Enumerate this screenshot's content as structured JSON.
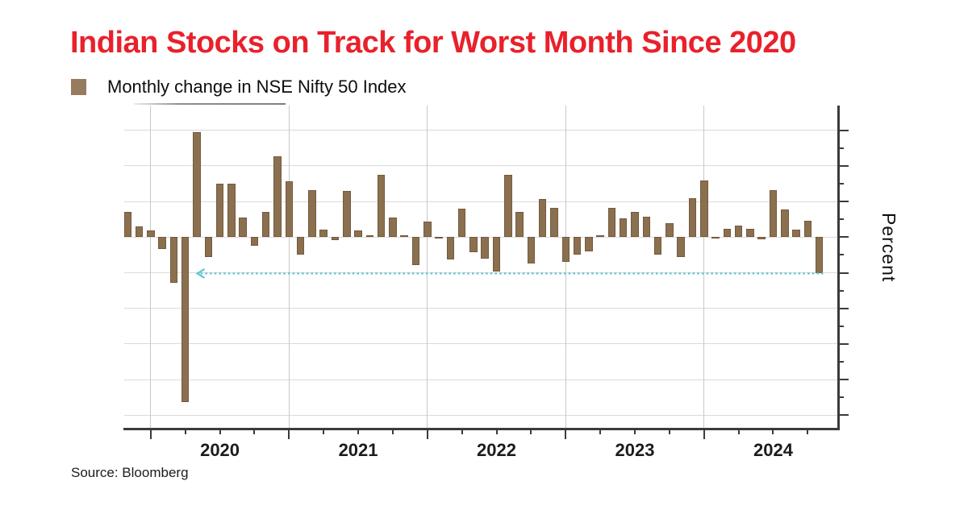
{
  "header": {
    "title": "Indian Stocks on Track for Worst Month Since 2020",
    "title_color": "#E8212B"
  },
  "legend": {
    "label": "Monthly change in NSE Nifty 50 Index",
    "swatch_color": "#977B5E"
  },
  "footer": {
    "source": "Source: Bloomberg"
  },
  "chart_data": {
    "type": "bar",
    "title": "Monthly change in NSE Nifty 50 Index",
    "ylabel": "Percent",
    "bar_color": "#8B7050",
    "grid": true,
    "ylim": [
      -26.9,
      18.5
    ],
    "y_gridlines": [
      15,
      10,
      5,
      0,
      -5,
      -10,
      -15,
      -20,
      -25
    ],
    "y_minor_ticks": [
      12.5,
      7.5,
      2.5,
      -2.5,
      -7.5,
      -12.5,
      -17.5,
      -22.5
    ],
    "x_year_labels": [
      "2020",
      "2021",
      "2022",
      "2023",
      "2024"
    ],
    "months": [
      "2019-10",
      "2019-11",
      "2019-12",
      "2020-01",
      "2020-02",
      "2020-03",
      "2020-04",
      "2020-05",
      "2020-06",
      "2020-07",
      "2020-08",
      "2020-09",
      "2020-10",
      "2020-11",
      "2020-12",
      "2021-01",
      "2021-02",
      "2021-03",
      "2021-04",
      "2021-05",
      "2021-06",
      "2021-07",
      "2021-08",
      "2021-09",
      "2021-10",
      "2021-11",
      "2021-12",
      "2022-01",
      "2022-02",
      "2022-03",
      "2022-04",
      "2022-05",
      "2022-06",
      "2022-07",
      "2022-08",
      "2022-09",
      "2022-10",
      "2022-11",
      "2022-12",
      "2023-01",
      "2023-02",
      "2023-03",
      "2023-04",
      "2023-05",
      "2023-06",
      "2023-07",
      "2023-08",
      "2023-09",
      "2023-10",
      "2023-11",
      "2023-12",
      "2024-01",
      "2024-02",
      "2024-03",
      "2024-04",
      "2024-05",
      "2024-06",
      "2024-07",
      "2024-08",
      "2024-09",
      "2024-10"
    ],
    "values": [
      3.5,
      1.5,
      0.9,
      -1.7,
      -6.4,
      -23.2,
      14.7,
      -2.8,
      7.5,
      7.5,
      2.8,
      -1.2,
      3.5,
      11.4,
      7.8,
      -2.5,
      6.6,
      1.1,
      -0.4,
      6.5,
      0.9,
      0.3,
      8.7,
      2.8,
      0.3,
      -3.9,
      2.2,
      -0.1,
      -3.1,
      4.0,
      -2.1,
      -3.0,
      -4.8,
      8.7,
      3.5,
      -3.7,
      5.4,
      4.1,
      -3.5,
      -2.4,
      -2.0,
      0.3,
      4.1,
      2.6,
      3.5,
      2.9,
      -2.5,
      2.0,
      -2.8,
      5.5,
      7.9,
      0.0,
      1.2,
      1.6,
      1.2,
      -0.3,
      6.6,
      3.9,
      1.1,
      2.3,
      -5.1
    ],
    "annotation_line": {
      "value": -5.1,
      "color": "#5BC4D4",
      "style": "dotted",
      "arrow_direction": "left",
      "from_month": "2020-03",
      "to_month": "2024-10"
    }
  }
}
